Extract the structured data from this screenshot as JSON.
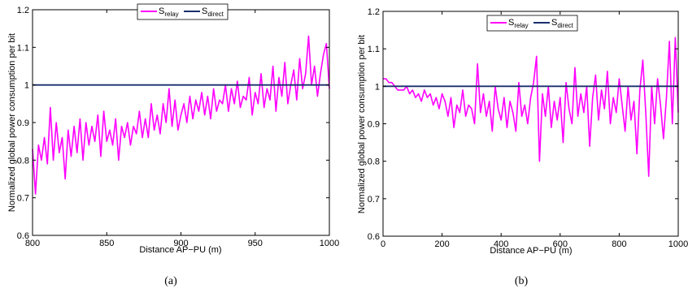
{
  "chart_data": [
    {
      "type": "line",
      "caption": "(a)",
      "xlabel": "Distance AP−PU (m)",
      "ylabel": "Normalized global power consumption per bit",
      "xlim": [
        800,
        1000
      ],
      "ylim": [
        0.6,
        1.2
      ],
      "xticks": [
        800,
        850,
        900,
        950,
        1000
      ],
      "yticks": [
        0.6,
        0.7,
        0.8,
        0.9,
        1,
        1.1,
        1.2
      ],
      "xtick_labels": [
        "800",
        "850",
        "900",
        "950",
        "1000"
      ],
      "ytick_labels": [
        "0.6",
        "0.7",
        "0.8",
        "0.9",
        "1",
        "1.1",
        "1.2"
      ],
      "grid": false,
      "legend_position": "top",
      "legend": [
        {
          "base": "S",
          "sub": "relay",
          "color": "#ff00ff"
        },
        {
          "base": "S",
          "sub": "direct",
          "color": "#1a2e6e"
        }
      ],
      "series": [
        {
          "name": "S_relay",
          "color": "#ff00ff",
          "x": [
            800,
            802,
            804,
            806,
            808,
            810,
            812,
            814,
            816,
            818,
            820,
            822,
            824,
            826,
            828,
            830,
            832,
            834,
            836,
            838,
            840,
            842,
            844,
            846,
            848,
            850,
            852,
            854,
            856,
            858,
            860,
            862,
            864,
            866,
            868,
            870,
            872,
            874,
            876,
            878,
            880,
            882,
            884,
            886,
            888,
            890,
            892,
            894,
            896,
            898,
            900,
            902,
            904,
            906,
            908,
            910,
            912,
            914,
            916,
            918,
            920,
            922,
            924,
            926,
            928,
            930,
            932,
            934,
            936,
            938,
            940,
            942,
            944,
            946,
            948,
            950,
            952,
            954,
            956,
            958,
            960,
            962,
            964,
            966,
            968,
            970,
            972,
            974,
            976,
            978,
            980,
            982,
            984,
            986,
            988,
            990,
            992,
            994,
            996,
            998,
            1000
          ],
          "y": [
            0.83,
            0.71,
            0.84,
            0.8,
            0.86,
            0.79,
            0.94,
            0.8,
            0.9,
            0.82,
            0.86,
            0.75,
            0.88,
            0.81,
            0.89,
            0.82,
            0.91,
            0.8,
            0.9,
            0.84,
            0.89,
            0.85,
            0.92,
            0.81,
            0.93,
            0.85,
            0.88,
            0.84,
            0.91,
            0.8,
            0.89,
            0.86,
            0.9,
            0.84,
            0.89,
            0.87,
            0.93,
            0.86,
            0.91,
            0.86,
            0.95,
            0.88,
            0.92,
            0.87,
            0.95,
            0.9,
            0.99,
            0.89,
            0.96,
            0.88,
            0.92,
            0.95,
            0.9,
            0.97,
            0.91,
            0.96,
            0.93,
            0.98,
            0.92,
            0.97,
            0.91,
            0.99,
            0.93,
            0.96,
            0.95,
            1.0,
            0.93,
            0.99,
            0.95,
            1.01,
            0.94,
            0.97,
            0.96,
            1.02,
            0.92,
            0.98,
            0.95,
            1.03,
            0.94,
            0.99,
            0.96,
            1.05,
            0.93,
            1.02,
            0.97,
            1.06,
            0.95,
            1.0,
            1.04,
            0.96,
            1.07,
            0.99,
            1.03,
            1.13,
            1.0,
            1.05,
            0.97,
            1.03,
            1.08,
            1.11,
            0.99
          ]
        },
        {
          "name": "S_direct",
          "color": "#1a2e6e",
          "x": [
            800,
            1000
          ],
          "y": [
            1,
            1
          ]
        }
      ]
    },
    {
      "type": "line",
      "caption": "(b)",
      "xlabel": "Distance AP−PU (m)",
      "ylabel": "Normalized global power consumption per bit",
      "xlim": [
        0,
        1000
      ],
      "ylim": [
        0.6,
        1.2
      ],
      "xticks": [
        0,
        200,
        400,
        600,
        800,
        1000
      ],
      "yticks": [
        0.6,
        0.7,
        0.8,
        0.9,
        1,
        1.1,
        1.2
      ],
      "xtick_labels": [
        "0",
        "200",
        "400",
        "600",
        "800",
        "1000"
      ],
      "ytick_labels": [
        "0.6",
        "0.7",
        "0.8",
        "0.9",
        "1",
        "1.1",
        "1.2"
      ],
      "grid": false,
      "legend_position": "top",
      "legend": [
        {
          "base": "S",
          "sub": "relay",
          "color": "#ff00ff"
        },
        {
          "base": "S",
          "sub": "direct",
          "color": "#1a2e6e"
        }
      ],
      "series": [
        {
          "name": "S_relay",
          "color": "#ff00ff",
          "x": [
            0,
            10,
            20,
            30,
            40,
            50,
            60,
            70,
            80,
            90,
            100,
            110,
            120,
            130,
            140,
            150,
            160,
            170,
            180,
            190,
            200,
            210,
            220,
            230,
            240,
            250,
            260,
            270,
            280,
            290,
            300,
            310,
            320,
            330,
            340,
            350,
            360,
            370,
            380,
            390,
            400,
            410,
            420,
            430,
            440,
            450,
            460,
            470,
            480,
            490,
            500,
            510,
            520,
            530,
            540,
            550,
            560,
            570,
            580,
            590,
            600,
            610,
            620,
            630,
            640,
            650,
            660,
            670,
            680,
            690,
            700,
            710,
            720,
            730,
            740,
            750,
            760,
            770,
            780,
            790,
            800,
            810,
            820,
            830,
            840,
            850,
            860,
            870,
            880,
            890,
            900,
            910,
            920,
            930,
            940,
            950,
            960,
            970,
            980,
            990,
            1000
          ],
          "y": [
            1.02,
            1.02,
            1.01,
            1.01,
            1.0,
            0.99,
            0.99,
            0.99,
            1.0,
            0.98,
            0.99,
            0.97,
            0.98,
            0.96,
            0.99,
            0.97,
            0.98,
            0.95,
            0.97,
            0.94,
            0.98,
            0.96,
            0.92,
            0.97,
            0.89,
            0.95,
            0.93,
            0.99,
            0.92,
            0.95,
            0.94,
            0.9,
            1.06,
            0.93,
            0.98,
            0.92,
            0.96,
            0.88,
            1.0,
            0.94,
            0.91,
            0.97,
            0.89,
            0.96,
            0.93,
            0.88,
            1.01,
            0.92,
            0.95,
            0.9,
            0.97,
            1.01,
            1.08,
            0.8,
            0.98,
            0.92,
            1.0,
            0.89,
            0.96,
            0.91,
            0.97,
            0.85,
            1.01,
            0.94,
            0.9,
            1.05,
            0.92,
            0.98,
            0.93,
            1.0,
            0.84,
            0.97,
            1.03,
            0.91,
            0.99,
            0.94,
            1.04,
            0.9,
            0.97,
            0.93,
            1.02,
            0.95,
            0.88,
            1.0,
            0.91,
            0.96,
            0.82,
            0.99,
            1.07,
            0.93,
            0.76,
            1.0,
            0.9,
            1.02,
            0.95,
            0.86,
            0.97,
            1.12,
            0.9,
            1.13,
            0.93
          ]
        },
        {
          "name": "S_direct",
          "color": "#1a2e6e",
          "x": [
            0,
            1000
          ],
          "y": [
            1,
            1
          ]
        }
      ]
    }
  ]
}
